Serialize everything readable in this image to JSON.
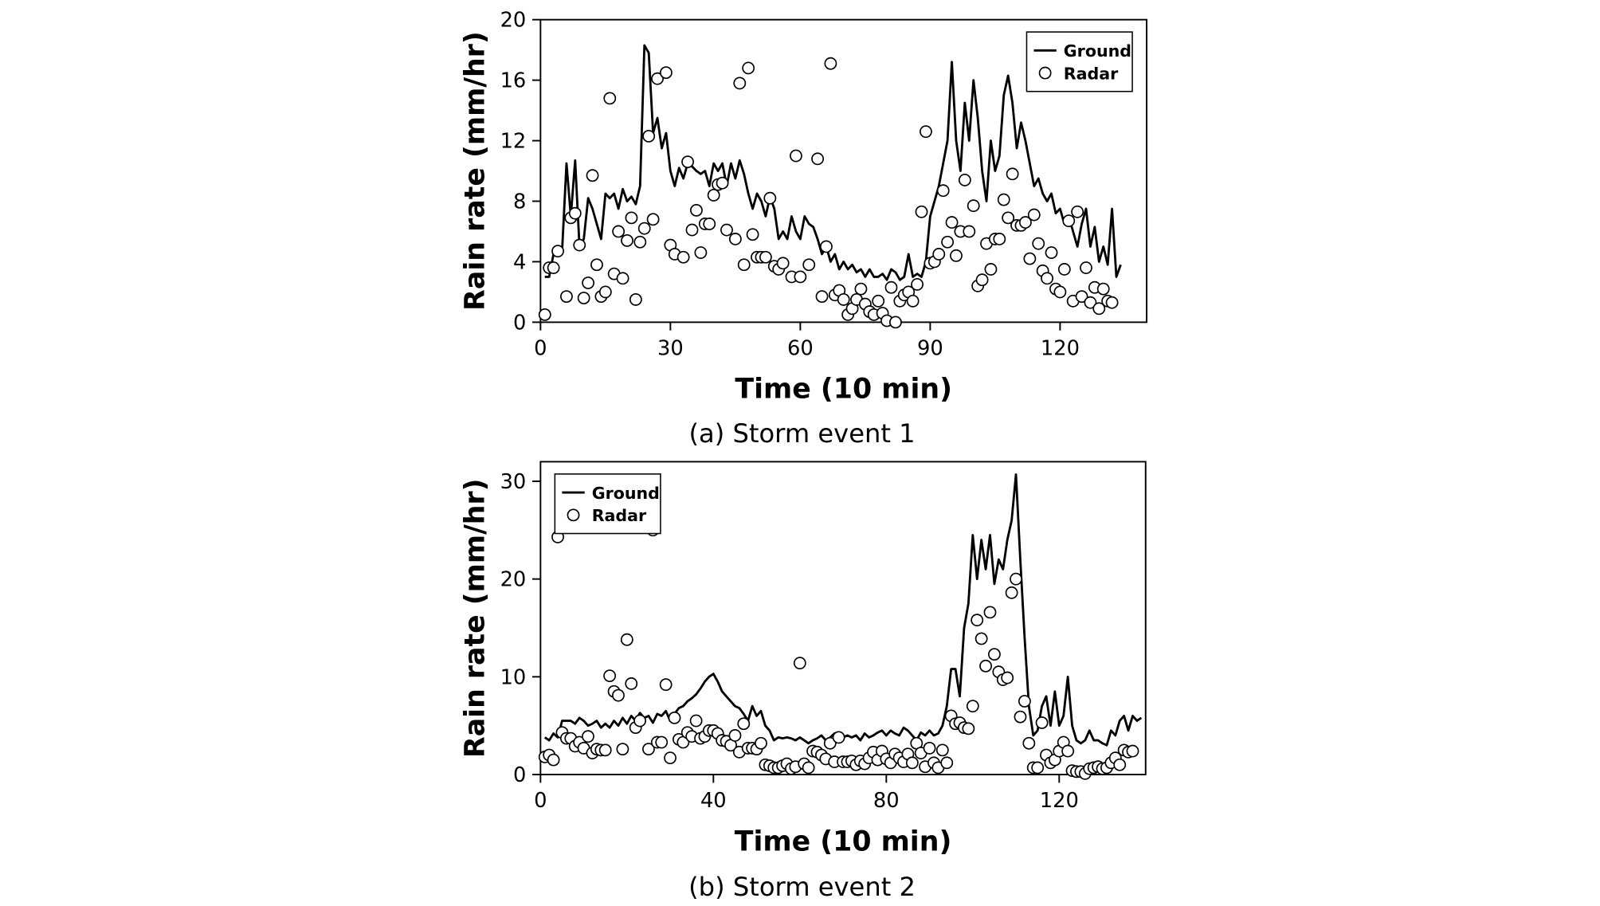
{
  "chart_data": [
    {
      "type": "line",
      "caption": "(a) Storm event 1",
      "xlabel": "Time (10 min)",
      "ylabel": "Rain rate (mm/hr)",
      "xlim": [
        0,
        140
      ],
      "xticks": [
        0,
        30,
        60,
        90,
        120
      ],
      "ylim": [
        0,
        20
      ],
      "yticks": [
        0,
        4,
        8,
        12,
        16,
        20
      ],
      "legend": "upper right",
      "series": [
        {
          "name": "Ground",
          "style": "line",
          "color": "#000000",
          "x": [
            1,
            2,
            3,
            4,
            5,
            6,
            7,
            8,
            9,
            10,
            11,
            12,
            13,
            14,
            15,
            16,
            17,
            18,
            19,
            20,
            21,
            22,
            23,
            24,
            25,
            26,
            27,
            28,
            29,
            30,
            31,
            32,
            33,
            34,
            35,
            36,
            37,
            38,
            39,
            40,
            41,
            42,
            43,
            44,
            45,
            46,
            47,
            48,
            49,
            50,
            51,
            52,
            53,
            54,
            55,
            56,
            57,
            58,
            59,
            60,
            61,
            62,
            63,
            64,
            65,
            66,
            67,
            68,
            69,
            70,
            71,
            72,
            73,
            74,
            75,
            76,
            77,
            78,
            79,
            80,
            81,
            82,
            83,
            84,
            85,
            86,
            87,
            88,
            89,
            90,
            91,
            92,
            93,
            94,
            95,
            96,
            97,
            98,
            99,
            100,
            101,
            102,
            103,
            104,
            105,
            106,
            107,
            108,
            109,
            110,
            111,
            112,
            113,
            114,
            115,
            116,
            117,
            118,
            119,
            120,
            121,
            122,
            123,
            124,
            125,
            126,
            127,
            128,
            129,
            130,
            131,
            132,
            133,
            134
          ],
          "values": [
            3,
            3,
            4.5,
            4.5,
            4.8,
            10.5,
            7,
            10.7,
            5,
            5.5,
            8.2,
            7.5,
            6.5,
            5.5,
            8.5,
            8.2,
            8.5,
            7.5,
            8.8,
            8,
            8.3,
            7.8,
            9,
            18.3,
            17.8,
            12.5,
            13.5,
            11.5,
            12.5,
            10,
            9,
            10.2,
            9.5,
            10.5,
            10.3,
            10,
            9.8,
            10,
            9,
            10.5,
            10,
            10.5,
            9,
            10.5,
            9.5,
            10.7,
            9.8,
            8.5,
            7.5,
            8.5,
            8,
            7,
            8.3,
            7.5,
            5.5,
            6,
            5.5,
            7,
            6,
            5.5,
            7,
            6.5,
            6.3,
            5.5,
            4.5,
            5,
            4,
            4.5,
            3.5,
            4,
            3.5,
            3.8,
            3.3,
            3.5,
            3,
            3.5,
            3,
            3,
            3.2,
            2.8,
            3.5,
            3.3,
            2.8,
            3,
            4.5,
            3,
            3.2,
            3,
            4,
            7,
            8,
            9,
            10.5,
            12,
            17.2,
            12,
            10,
            14.5,
            12,
            16,
            13.5,
            10,
            8,
            12,
            10,
            11,
            15,
            16.3,
            14.5,
            11.5,
            13.2,
            12,
            10.5,
            9,
            9.5,
            8.5,
            8,
            8.5,
            7.2,
            7.5,
            6.5,
            7,
            6,
            5,
            6.5,
            7.5,
            5,
            6.3,
            4,
            5,
            3.8,
            7.5,
            3,
            3.8
          ]
        },
        {
          "name": "Radar",
          "style": "marker",
          "color": "#000000",
          "x": [
            1,
            2,
            3,
            4,
            6,
            7,
            8,
            9,
            10,
            11,
            12,
            13,
            14,
            15,
            16,
            17,
            18,
            19,
            20,
            21,
            22,
            23,
            24,
            25,
            26,
            27,
            29,
            30,
            31,
            33,
            34,
            35,
            36,
            37,
            38,
            39,
            40,
            41,
            42,
            43,
            45,
            46,
            47,
            48,
            49,
            50,
            51,
            52,
            53,
            54,
            55,
            56,
            58,
            59,
            60,
            62,
            64,
            65,
            66,
            67,
            68,
            69,
            70,
            71,
            72,
            73,
            74,
            75,
            76,
            77,
            78,
            79,
            80,
            81,
            82,
            83,
            84,
            85,
            86,
            87,
            88,
            89,
            90,
            91,
            92,
            93,
            94,
            95,
            96,
            97,
            98,
            99,
            100,
            101,
            102,
            103,
            104,
            105,
            106,
            107,
            108,
            109,
            110,
            111,
            112,
            113,
            114,
            115,
            116,
            117,
            118,
            119,
            120,
            121,
            122,
            123,
            124,
            125,
            126,
            127,
            128,
            129,
            130,
            131,
            132
          ],
          "values": [
            0.5,
            3.6,
            3.6,
            4.7,
            1.7,
            6.9,
            7.2,
            5.1,
            1.6,
            2.6,
            9.7,
            3.8,
            1.7,
            2,
            14.8,
            3.2,
            6,
            2.9,
            5.4,
            6.9,
            1.5,
            5.3,
            6.2,
            12.3,
            6.8,
            16.1,
            16.5,
            5.1,
            4.5,
            4.3,
            10.6,
            6.1,
            7.4,
            4.6,
            6.5,
            6.5,
            8.4,
            9.1,
            9.2,
            6.1,
            5.5,
            15.8,
            3.8,
            16.8,
            5.8,
            4.3,
            4.3,
            4.3,
            8.2,
            3.7,
            3.5,
            3.9,
            3,
            11,
            3,
            3.8,
            10.8,
            1.7,
            5,
            17.1,
            1.8,
            2.1,
            1.5,
            0.5,
            0.9,
            1.5,
            2.2,
            1.2,
            0.7,
            0.5,
            1.4,
            0.6,
            0.1,
            2.3,
            0,
            1.4,
            1.8,
            2,
            1.4,
            2.5,
            7.3,
            12.6,
            3.9,
            4,
            4.5,
            8.7,
            5.3,
            6.6,
            4.4,
            6,
            9.4,
            6,
            7.7,
            2.4,
            2.8,
            5.2,
            3.5,
            5.5,
            5.5,
            8.1,
            6.9,
            9.8,
            6.4,
            6.4,
            6.6,
            4.2,
            7.1,
            5.2,
            3.4,
            2.9,
            4.6,
            2.2,
            2,
            3.5,
            6.7,
            1.4,
            7.3,
            1.7,
            3.6,
            1.3,
            2.3,
            0.9,
            2.2,
            1.4,
            1.3
          ]
        }
      ]
    },
    {
      "type": "line",
      "caption": "(b) Storm event 2",
      "xlabel": "Time (10 min)",
      "ylabel": "Rain rate (mm/hr)",
      "xlim": [
        0,
        140
      ],
      "xticks": [
        0,
        40,
        80,
        120
      ],
      "ylim": [
        0,
        32
      ],
      "yticks": [
        0,
        10,
        20,
        30
      ],
      "legend": "upper left",
      "series": [
        {
          "name": "Ground",
          "style": "line",
          "color": "#000000",
          "x": [
            1,
            2,
            3,
            4,
            5,
            6,
            7,
            8,
            9,
            10,
            11,
            12,
            13,
            14,
            15,
            16,
            17,
            18,
            19,
            20,
            21,
            22,
            23,
            24,
            25,
            26,
            27,
            28,
            29,
            30,
            31,
            32,
            33,
            34,
            35,
            36,
            37,
            38,
            39,
            40,
            41,
            42,
            43,
            44,
            45,
            46,
            47,
            48,
            49,
            50,
            51,
            52,
            53,
            54,
            55,
            56,
            57,
            58,
            59,
            60,
            61,
            62,
            63,
            64,
            65,
            66,
            67,
            68,
            69,
            70,
            71,
            72,
            73,
            74,
            75,
            76,
            77,
            78,
            79,
            80,
            81,
            82,
            83,
            84,
            85,
            86,
            87,
            88,
            89,
            90,
            91,
            92,
            93,
            94,
            95,
            96,
            97,
            98,
            99,
            100,
            101,
            102,
            103,
            104,
            105,
            106,
            107,
            108,
            109,
            110,
            111,
            112,
            113,
            114,
            115,
            116,
            117,
            118,
            119,
            120,
            121,
            122,
            123,
            124,
            125,
            126,
            127,
            128,
            129,
            130,
            131,
            132,
            133,
            134,
            135,
            136,
            137,
            138,
            139
          ],
          "values": [
            3.8,
            3.5,
            4.2,
            3.8,
            5.5,
            5.5,
            5.5,
            5.2,
            5.8,
            5.5,
            5,
            5.2,
            5.5,
            4.8,
            5.2,
            4.8,
            5.5,
            5,
            5.8,
            5.2,
            6,
            5.5,
            6.3,
            5.8,
            6,
            5.3,
            6.2,
            6,
            6.5,
            5.5,
            6.2,
            6.8,
            7,
            7.5,
            7.8,
            8.2,
            8.8,
            9.5,
            10,
            10.3,
            9.5,
            8.5,
            8,
            7.5,
            7,
            6.8,
            6.2,
            5.5,
            7,
            6,
            6.5,
            5,
            4.5,
            3.5,
            3.8,
            3.7,
            3.8,
            3.7,
            3.5,
            3.8,
            3.5,
            3.2,
            3.5,
            3.7,
            4,
            3.5,
            3.8,
            4.2,
            3.5,
            3.8,
            4,
            3.8,
            4,
            3.5,
            4.2,
            3.8,
            4,
            4.3,
            4.5,
            4,
            4.5,
            4.2,
            4,
            4.8,
            4.5,
            4,
            3.5,
            4.3,
            4,
            4.5,
            4,
            4.2,
            5,
            7,
            10.8,
            10.8,
            8,
            15,
            17.5,
            24.5,
            20,
            24,
            21,
            24.5,
            19.5,
            22,
            21,
            24,
            26,
            30.7,
            22,
            14,
            7,
            4,
            4.5,
            7,
            8,
            5,
            8.5,
            5,
            6,
            10,
            5,
            3.5,
            3.2,
            3.5,
            4.5,
            3.5,
            3.5,
            3.2,
            3,
            4.5,
            4,
            5.5,
            6,
            4.5,
            6,
            5.5,
            5.8
          ]
        },
        {
          "name": "Radar",
          "style": "marker",
          "color": "#000000",
          "x": [
            1,
            2,
            3,
            4,
            5,
            6,
            7,
            8,
            9,
            10,
            11,
            12,
            13,
            14,
            15,
            16,
            17,
            18,
            19,
            20,
            21,
            22,
            23,
            25,
            26,
            27,
            28,
            29,
            30,
            31,
            32,
            33,
            34,
            35,
            36,
            37,
            38,
            39,
            40,
            41,
            42,
            43,
            44,
            45,
            46,
            47,
            48,
            49,
            50,
            51,
            52,
            53,
            54,
            55,
            56,
            57,
            58,
            59,
            60,
            61,
            62,
            63,
            64,
            65,
            66,
            67,
            68,
            69,
            70,
            71,
            72,
            73,
            74,
            75,
            76,
            77,
            78,
            79,
            80,
            81,
            82,
            83,
            84,
            85,
            86,
            87,
            88,
            89,
            90,
            91,
            92,
            93,
            94,
            95,
            96,
            97,
            98,
            99,
            100,
            101,
            102,
            103,
            104,
            105,
            106,
            107,
            108,
            109,
            110,
            111,
            112,
            113,
            114,
            115,
            116,
            117,
            118,
            119,
            120,
            121,
            122,
            123,
            124,
            125,
            126,
            127,
            128,
            129,
            130,
            131,
            132,
            133,
            134,
            135,
            136,
            137
          ],
          "values": [
            1.8,
            2,
            1.5,
            24.3,
            4.3,
            3.7,
            3.7,
            2.9,
            3.3,
            2.7,
            3.9,
            2.2,
            2.6,
            2.5,
            2.5,
            10.1,
            8.5,
            8.1,
            2.6,
            13.8,
            9.3,
            4.8,
            5.5,
            2.6,
            25,
            3.3,
            3.3,
            9.2,
            1.7,
            5.8,
            3.6,
            3.3,
            4.3,
            3.9,
            5.5,
            3.7,
            3.9,
            4.5,
            4.5,
            4.2,
            3.5,
            3.4,
            3,
            4,
            2.3,
            5.2,
            2.7,
            2.7,
            2.6,
            3.2,
            1,
            0.9,
            0.7,
            0.7,
            0.9,
            1.1,
            0.6,
            0.8,
            11.4,
            1.1,
            0.7,
            2.4,
            2.3,
            2,
            1.6,
            3.2,
            1.3,
            3.8,
            1.3,
            1.3,
            1.4,
            1,
            1.4,
            1.1,
            1.7,
            2.3,
            1.5,
            2.4,
            1.6,
            1.2,
            2.1,
            1.7,
            1.3,
            2.1,
            1.2,
            3.2,
            2.2,
            0.8,
            2.7,
            1.2,
            0.7,
            2.5,
            1.2,
            6,
            5.2,
            5.3,
            4.8,
            4.7,
            7,
            15.8,
            13.9,
            11.1,
            16.6,
            12.3,
            10.5,
            9.7,
            9.9,
            18.6,
            20,
            5.9,
            7.5,
            3.2,
            0.7,
            0.7,
            5.3,
            2,
            1.2,
            1.5,
            2.4,
            3.3,
            2.4,
            0.4,
            0.3,
            0.3,
            0.1,
            0.6,
            0.7,
            0.8,
            0.6,
            0.7,
            1.2,
            1.7,
            1,
            2.5,
            2.3,
            2.4
          ]
        }
      ]
    }
  ]
}
